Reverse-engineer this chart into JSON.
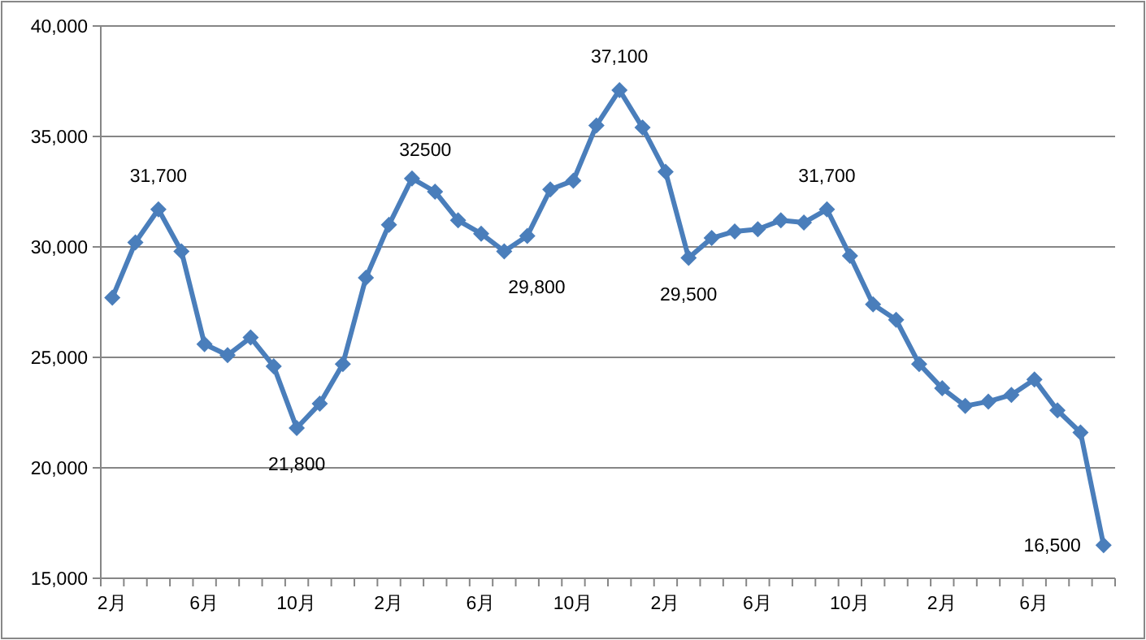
{
  "chart_data": {
    "type": "line",
    "categories": [
      "2月",
      null,
      null,
      null,
      "6月",
      null,
      null,
      null,
      "10月",
      null,
      null,
      null,
      "2月",
      null,
      null,
      null,
      "6月",
      null,
      null,
      null,
      "10月",
      null,
      null,
      null,
      "2月",
      null,
      null,
      null,
      "6月",
      null,
      null,
      null,
      "10月",
      null,
      null,
      null,
      "2月",
      null,
      null,
      null,
      "6月",
      null,
      null,
      null
    ],
    "series": [
      {
        "color": "#4a7ebb",
        "values": [
          27700,
          30200,
          31700,
          29800,
          25600,
          25100,
          25900,
          24600,
          21800,
          22900,
          24700,
          28600,
          31000,
          33100,
          32500,
          31200,
          30600,
          29800,
          30500,
          32600,
          33000,
          35500,
          37100,
          35400,
          33400,
          29500,
          30400,
          30700,
          30800,
          31200,
          31100,
          31700,
          29600,
          27400,
          26700,
          24700,
          23600,
          22800,
          23000,
          23300,
          24000,
          22600,
          21600,
          16500
        ],
        "value_labels": [
          null,
          null,
          "31,700",
          null,
          null,
          null,
          null,
          null,
          "21,800",
          null,
          null,
          null,
          null,
          null,
          "32500",
          null,
          null,
          "29,800",
          null,
          null,
          null,
          null,
          "37,100",
          null,
          null,
          "29,500",
          null,
          null,
          null,
          null,
          null,
          "31,700",
          null,
          null,
          null,
          null,
          null,
          null,
          null,
          null,
          null,
          null,
          null,
          "16,500"
        ]
      }
    ],
    "ylim": [
      15000,
      40000
    ],
    "yticks": [
      {
        "value": 15000,
        "label": "15,000"
      },
      {
        "value": 20000,
        "label": "20,000"
      },
      {
        "value": 25000,
        "label": "25,000"
      },
      {
        "value": 30000,
        "label": "30,000"
      },
      {
        "value": 35000,
        "label": "35,000"
      },
      {
        "value": 40000,
        "label": "40,000"
      }
    ],
    "grid": "y",
    "marker": "diamond",
    "line_style": "solid"
  }
}
